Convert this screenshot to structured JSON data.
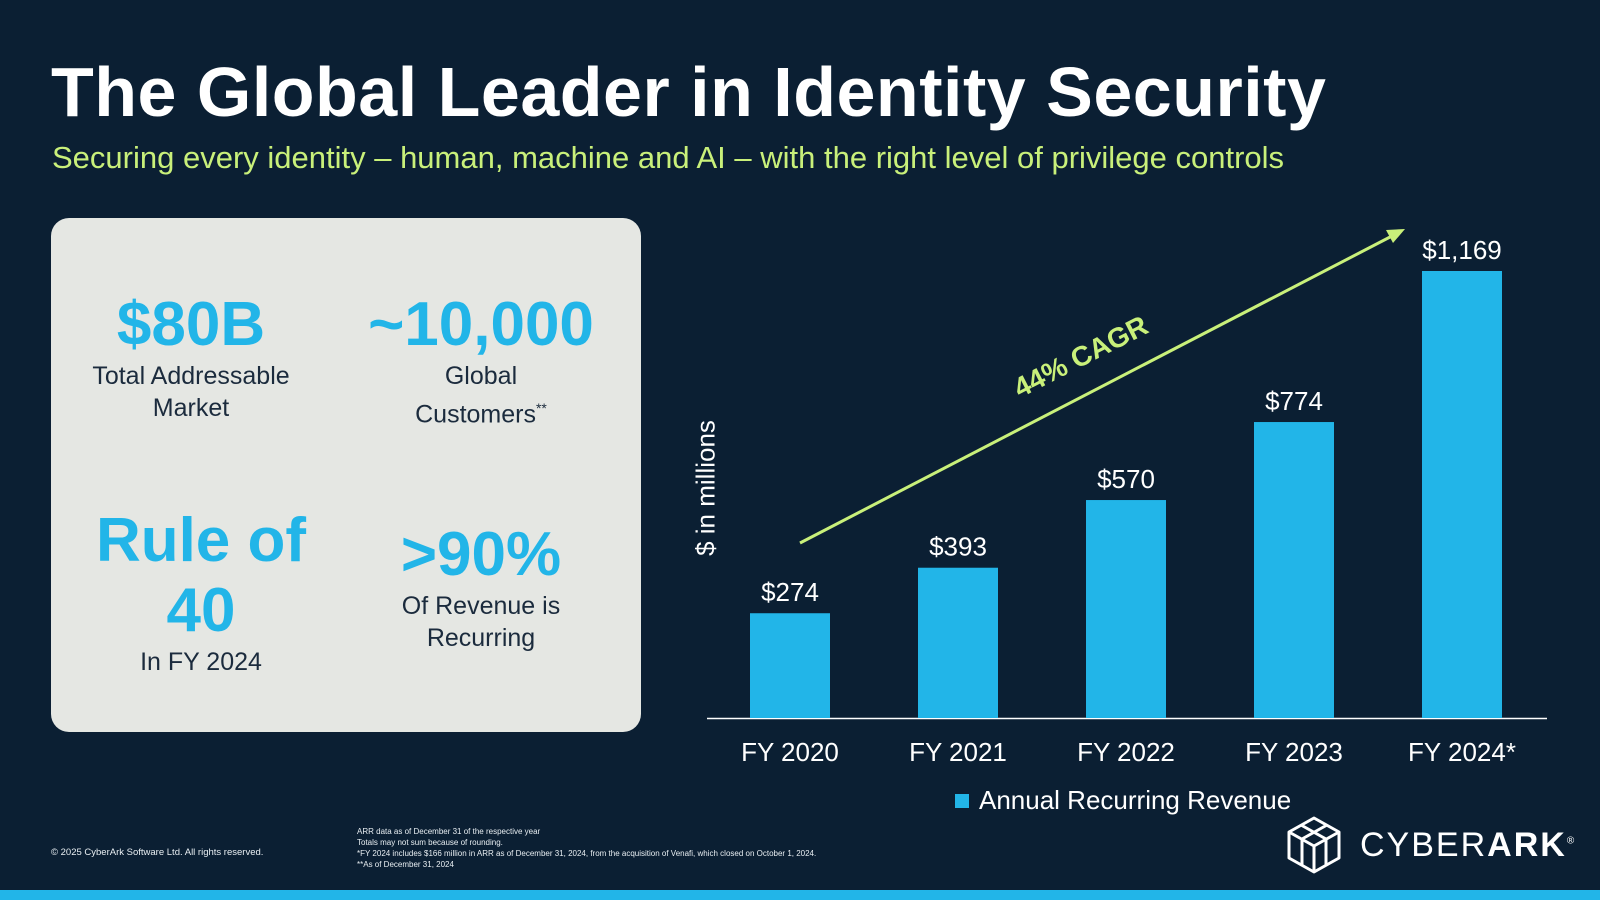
{
  "header": {
    "title": "The Global Leader in Identity Security",
    "subtitle": "Securing every identity – human, machine and AI – with the right level of privilege controls"
  },
  "stats": {
    "tam": {
      "value": "$80B",
      "label_line1": "Total Addressable",
      "label_line2": "Market"
    },
    "customers": {
      "value": "~10,000",
      "label_line1": "Global",
      "label_line2": "Customers",
      "label_mark": "**"
    },
    "rule": {
      "value_line1": "Rule of",
      "value_line2": "40",
      "label": "In FY 2024"
    },
    "recurring": {
      "value": ">90%",
      "label_line1": "Of Revenue is",
      "label_line2": "Recurring"
    }
  },
  "chart_data": {
    "type": "bar",
    "categories": [
      "FY 2020",
      "FY 2021",
      "FY 2022",
      "FY 2023",
      "FY 2024*"
    ],
    "series": [
      {
        "name": "Annual Recurring Revenue",
        "values": [
          274,
          393,
          570,
          774,
          1169
        ]
      }
    ],
    "data_labels": [
      "$274",
      "$393",
      "$570",
      "$774",
      "$1,169"
    ],
    "ylabel": "$ in millions",
    "ylim": [
      0,
      1169
    ],
    "annotation": "44% CAGR",
    "legend_position": "bottom",
    "grid": false,
    "colors": {
      "bar": "#22b5e8",
      "annotation": "#c9f07a"
    }
  },
  "footer": {
    "copyright": "© 2025 CyberArk Software Ltd. All rights reserved.",
    "notes": [
      "ARR data as of December 31 of the respective year",
      "Totals may not sum because of rounding.",
      "*FY 2024 includes $166 million in ARR as of December 31, 2024, from the acquisition of Venafi, which closed on October 1, 2024.",
      "**As of December 31, 2024"
    ],
    "logo_part1": "CYBER",
    "logo_part2": "ARK",
    "logo_mark": "®"
  },
  "colors": {
    "background": "#0b1f33",
    "accent": "#22b5e8",
    "highlight": "#c9f07a",
    "card": "#e5e7e3"
  }
}
